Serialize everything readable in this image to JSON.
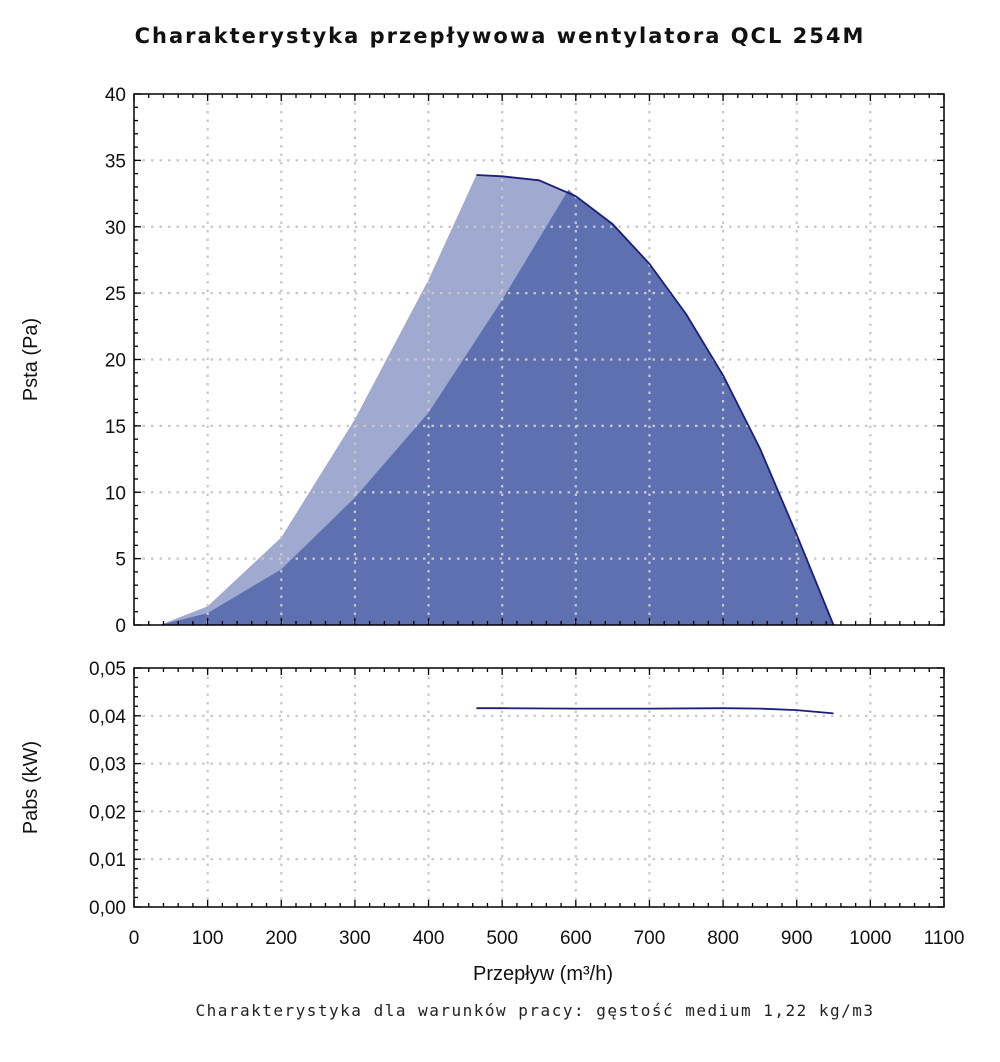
{
  "chart_data": {
    "title": "Charakterystyka przepływowa wentylatora QCL 254M",
    "footnote": "Charakterystyka dla warunków pracy: gęstość medium 1,22 kg/m3",
    "xlabel": "Przepływ (m³/h)",
    "x_ticks": [
      "0",
      "100",
      "200",
      "300",
      "400",
      "500",
      "600",
      "700",
      "800",
      "900",
      "1000",
      "1100"
    ],
    "xlim": [
      0,
      1100
    ],
    "grid": true,
    "colors": {
      "curve": "#1a1f7a",
      "fill_dark": "#5e70b0",
      "fill_light": "#a0a9cf",
      "grid": "#c8c8c8"
    },
    "charts": [
      {
        "type": "area",
        "ylabel": "Psta (Pa)",
        "ylim": [
          0,
          40
        ],
        "y_ticks": [
          "0",
          "5",
          "10",
          "15",
          "20",
          "25",
          "30",
          "35",
          "40"
        ],
        "series": [
          {
            "role": "operating-curve",
            "x": [
              465,
              500,
              550,
              600,
              650,
              700,
              750,
              800,
              850,
              900,
              925,
              950
            ],
            "y": [
              33.9,
              33.8,
              33.5,
              32.3,
              30.2,
              27.2,
              23.4,
              18.8,
              13.3,
              6.8,
              3.4,
              0
            ]
          },
          {
            "role": "light-area-boundary",
            "x": [
              35,
              100,
              200,
              300,
              400,
              465
            ],
            "y": [
              0,
              1.4,
              6.6,
              15.5,
              26.0,
              33.9
            ]
          },
          {
            "role": "dark-area-boundary",
            "x": [
              35,
              100,
              200,
              300,
              400,
              500,
              590
            ],
            "y": [
              0,
              0.9,
              4.2,
              9.6,
              16.0,
              24.5,
              32.8
            ]
          }
        ]
      },
      {
        "type": "line",
        "ylabel": "Pabs (kW)",
        "ylim": [
          0,
          0.05
        ],
        "y_ticks": [
          "0,00",
          "0,01",
          "0,02",
          "0,03",
          "0,04",
          "0,05"
        ],
        "series": [
          {
            "role": "power-curve",
            "x": [
              465,
              500,
              600,
              700,
              800,
              850,
              900,
              950
            ],
            "y": [
              0.0416,
              0.0416,
              0.0415,
              0.0415,
              0.0416,
              0.0415,
              0.0412,
              0.0405
            ]
          }
        ]
      }
    ]
  }
}
